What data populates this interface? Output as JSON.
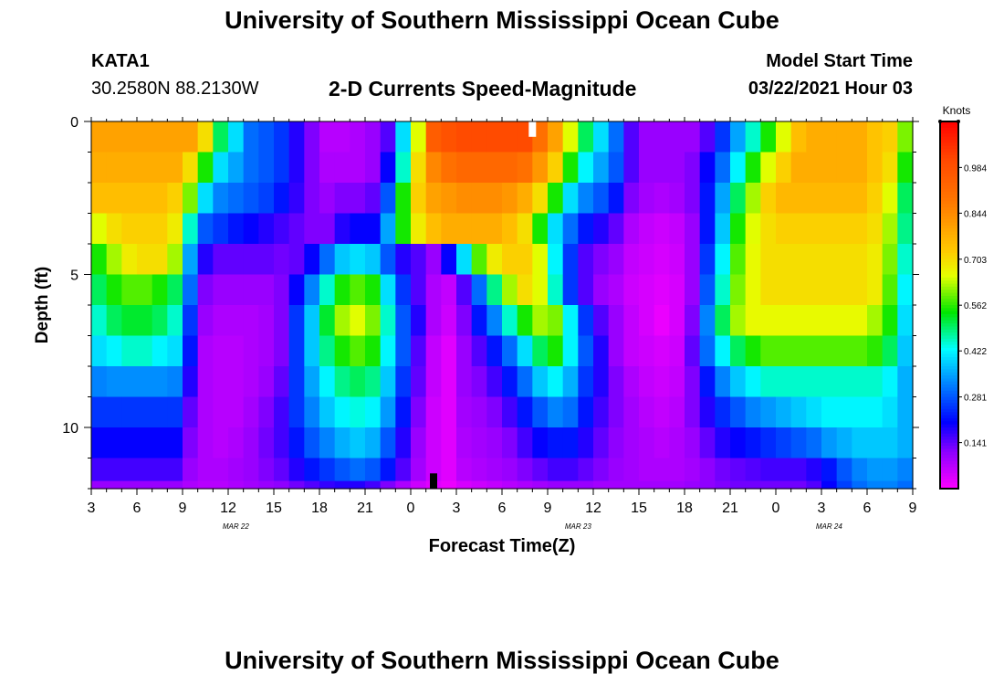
{
  "page": {
    "title": "University of Southern Mississippi Ocean Cube",
    "footer_title": "University of Southern Mississippi Ocean Cube"
  },
  "station": {
    "id": "KATA1",
    "coords": "30.2580N 88.2130W"
  },
  "model": {
    "label": "Model Start Time",
    "start": "03/22/2021 Hour 03"
  },
  "chart_data": {
    "type": "heatmap",
    "title": "2-D Currents Speed-Magnitude",
    "xlabel": "Forecast Time(Z)",
    "ylabel": "Depth (ft)",
    "x_tick_labels": [
      "3",
      "6",
      "9",
      "12",
      "15",
      "18",
      "21",
      "0",
      "3",
      "6",
      "9",
      "12",
      "15",
      "18",
      "21",
      "0",
      "3",
      "6",
      "9"
    ],
    "x_range_hours": [
      0,
      54
    ],
    "date_labels": [
      {
        "text": "MAR 22",
        "hour": 9.5
      },
      {
        "text": "MAR 23",
        "hour": 32
      },
      {
        "text": "MAR 24",
        "hour": 48.5
      }
    ],
    "y_tick_labels": [
      "0",
      "5",
      "10"
    ],
    "y_tick_values": [
      0,
      5,
      10
    ],
    "ylim": [
      0,
      12
    ],
    "colorbar": {
      "unit": "Knots",
      "tick_labels": [
        "0.984",
        "0.844",
        "0.703",
        "0.562",
        "0.422",
        "0.281",
        "0.141"
      ],
      "tick_values": [
        0.984,
        0.844,
        0.703,
        0.562,
        0.422,
        0.281,
        0.141
      ],
      "range": [
        0.0,
        1.125
      ]
    },
    "time_columns": 54,
    "depth_rows": [
      {
        "depth": 0.5,
        "values": [
          0.8,
          0.8,
          0.8,
          0.8,
          0.8,
          0.8,
          0.8,
          0.7,
          0.5,
          0.4,
          0.3,
          0.28,
          0.25,
          0.18,
          0.12,
          0.07,
          0.07,
          0.08,
          0.1,
          0.15,
          0.4,
          0.65,
          0.95,
          0.98,
          1.0,
          1.0,
          1.0,
          1.0,
          1.0,
          0.9,
          0.8,
          0.65,
          0.5,
          0.4,
          0.3,
          0.15,
          0.1,
          0.1,
          0.1,
          0.1,
          0.15,
          0.25,
          0.35,
          0.45,
          0.55,
          0.65,
          0.75,
          0.78,
          0.78,
          0.78,
          0.78,
          0.74,
          0.72,
          0.6
        ]
      },
      {
        "depth": 1.5,
        "values": [
          0.78,
          0.78,
          0.78,
          0.78,
          0.78,
          0.78,
          0.7,
          0.55,
          0.4,
          0.35,
          0.3,
          0.28,
          0.25,
          0.18,
          0.12,
          0.08,
          0.08,
          0.08,
          0.1,
          0.2,
          0.45,
          0.7,
          0.85,
          0.9,
          0.92,
          0.92,
          0.92,
          0.92,
          0.9,
          0.82,
          0.72,
          0.55,
          0.42,
          0.35,
          0.28,
          0.15,
          0.1,
          0.1,
          0.1,
          0.12,
          0.2,
          0.3,
          0.42,
          0.55,
          0.65,
          0.72,
          0.78,
          0.78,
          0.78,
          0.78,
          0.78,
          0.74,
          0.7,
          0.55
        ]
      },
      {
        "depth": 2.5,
        "values": [
          0.75,
          0.75,
          0.75,
          0.75,
          0.75,
          0.72,
          0.6,
          0.4,
          0.32,
          0.3,
          0.28,
          0.26,
          0.22,
          0.17,
          0.12,
          0.1,
          0.12,
          0.12,
          0.14,
          0.28,
          0.55,
          0.72,
          0.8,
          0.82,
          0.84,
          0.84,
          0.84,
          0.82,
          0.78,
          0.7,
          0.55,
          0.4,
          0.32,
          0.28,
          0.22,
          0.12,
          0.09,
          0.08,
          0.09,
          0.12,
          0.22,
          0.35,
          0.5,
          0.62,
          0.72,
          0.76,
          0.76,
          0.76,
          0.76,
          0.76,
          0.76,
          0.72,
          0.65,
          0.5
        ]
      },
      {
        "depth": 3.5,
        "values": [
          0.65,
          0.7,
          0.72,
          0.72,
          0.72,
          0.68,
          0.45,
          0.28,
          0.25,
          0.22,
          0.2,
          0.18,
          0.16,
          0.14,
          0.12,
          0.12,
          0.18,
          0.2,
          0.2,
          0.35,
          0.55,
          0.68,
          0.75,
          0.78,
          0.78,
          0.78,
          0.78,
          0.75,
          0.7,
          0.55,
          0.4,
          0.3,
          0.22,
          0.18,
          0.14,
          0.08,
          0.06,
          0.05,
          0.06,
          0.1,
          0.22,
          0.38,
          0.55,
          0.65,
          0.7,
          0.72,
          0.72,
          0.72,
          0.72,
          0.72,
          0.72,
          0.7,
          0.62,
          0.48
        ]
      },
      {
        "depth": 4.5,
        "values": [
          0.55,
          0.62,
          0.68,
          0.7,
          0.7,
          0.62,
          0.35,
          0.18,
          0.14,
          0.14,
          0.14,
          0.14,
          0.13,
          0.14,
          0.2,
          0.3,
          0.38,
          0.4,
          0.38,
          0.28,
          0.18,
          0.15,
          0.1,
          0.2,
          0.4,
          0.58,
          0.68,
          0.72,
          0.72,
          0.65,
          0.42,
          0.25,
          0.15,
          0.12,
          0.1,
          0.06,
          0.05,
          0.04,
          0.05,
          0.1,
          0.25,
          0.42,
          0.58,
          0.66,
          0.7,
          0.7,
          0.7,
          0.7,
          0.7,
          0.7,
          0.7,
          0.68,
          0.6,
          0.45
        ]
      },
      {
        "depth": 5.5,
        "values": [
          0.5,
          0.55,
          0.58,
          0.58,
          0.55,
          0.5,
          0.3,
          0.12,
          0.1,
          0.1,
          0.1,
          0.1,
          0.12,
          0.2,
          0.32,
          0.45,
          0.55,
          0.58,
          0.55,
          0.4,
          0.25,
          0.15,
          0.08,
          0.06,
          0.15,
          0.3,
          0.48,
          0.62,
          0.7,
          0.65,
          0.45,
          0.25,
          0.15,
          0.1,
          0.08,
          0.05,
          0.04,
          0.03,
          0.04,
          0.1,
          0.28,
          0.45,
          0.6,
          0.66,
          0.7,
          0.7,
          0.7,
          0.7,
          0.7,
          0.7,
          0.7,
          0.68,
          0.58,
          0.42
        ]
      },
      {
        "depth": 6.5,
        "values": [
          0.45,
          0.5,
          0.52,
          0.52,
          0.5,
          0.45,
          0.25,
          0.1,
          0.08,
          0.08,
          0.08,
          0.09,
          0.12,
          0.25,
          0.38,
          0.52,
          0.62,
          0.65,
          0.6,
          0.45,
          0.28,
          0.18,
          0.08,
          0.05,
          0.12,
          0.22,
          0.32,
          0.45,
          0.55,
          0.62,
          0.6,
          0.42,
          0.25,
          0.15,
          0.1,
          0.06,
          0.04,
          0.02,
          0.04,
          0.12,
          0.32,
          0.5,
          0.62,
          0.66,
          0.66,
          0.66,
          0.66,
          0.66,
          0.66,
          0.66,
          0.66,
          0.62,
          0.55,
          0.4
        ]
      },
      {
        "depth": 7.5,
        "values": [
          0.4,
          0.42,
          0.45,
          0.45,
          0.42,
          0.4,
          0.22,
          0.08,
          0.07,
          0.07,
          0.08,
          0.09,
          0.12,
          0.25,
          0.38,
          0.48,
          0.55,
          0.58,
          0.55,
          0.42,
          0.28,
          0.15,
          0.06,
          0.03,
          0.1,
          0.15,
          0.22,
          0.3,
          0.4,
          0.5,
          0.55,
          0.42,
          0.28,
          0.18,
          0.1,
          0.06,
          0.05,
          0.04,
          0.05,
          0.14,
          0.3,
          0.42,
          0.5,
          0.55,
          0.58,
          0.58,
          0.58,
          0.58,
          0.58,
          0.58,
          0.58,
          0.56,
          0.5,
          0.38
        ]
      },
      {
        "depth": 8.5,
        "values": [
          0.32,
          0.33,
          0.33,
          0.33,
          0.33,
          0.32,
          0.18,
          0.08,
          0.07,
          0.07,
          0.08,
          0.1,
          0.14,
          0.25,
          0.35,
          0.42,
          0.48,
          0.5,
          0.48,
          0.38,
          0.25,
          0.14,
          0.06,
          0.03,
          0.1,
          0.12,
          0.16,
          0.22,
          0.3,
          0.38,
          0.42,
          0.36,
          0.25,
          0.18,
          0.12,
          0.08,
          0.06,
          0.05,
          0.06,
          0.12,
          0.22,
          0.32,
          0.38,
          0.42,
          0.45,
          0.45,
          0.45,
          0.45,
          0.45,
          0.45,
          0.45,
          0.45,
          0.42,
          0.36
        ]
      },
      {
        "depth": 9.5,
        "values": [
          0.25,
          0.25,
          0.25,
          0.25,
          0.25,
          0.25,
          0.14,
          0.08,
          0.07,
          0.07,
          0.09,
          0.12,
          0.16,
          0.25,
          0.32,
          0.38,
          0.42,
          0.44,
          0.42,
          0.34,
          0.22,
          0.12,
          0.05,
          0.03,
          0.09,
          0.1,
          0.12,
          0.16,
          0.22,
          0.28,
          0.32,
          0.3,
          0.22,
          0.16,
          0.12,
          0.09,
          0.07,
          0.06,
          0.07,
          0.12,
          0.18,
          0.24,
          0.28,
          0.32,
          0.34,
          0.36,
          0.38,
          0.4,
          0.42,
          0.42,
          0.42,
          0.42,
          0.4,
          0.36
        ]
      },
      {
        "depth": 10.5,
        "values": [
          0.2,
          0.2,
          0.2,
          0.2,
          0.2,
          0.2,
          0.12,
          0.08,
          0.07,
          0.08,
          0.1,
          0.13,
          0.16,
          0.22,
          0.28,
          0.32,
          0.36,
          0.38,
          0.36,
          0.28,
          0.18,
          0.1,
          0.05,
          0.03,
          0.08,
          0.09,
          0.1,
          0.12,
          0.16,
          0.2,
          0.22,
          0.22,
          0.18,
          0.14,
          0.11,
          0.09,
          0.08,
          0.07,
          0.08,
          0.1,
          0.14,
          0.18,
          0.2,
          0.22,
          0.24,
          0.26,
          0.28,
          0.3,
          0.34,
          0.36,
          0.38,
          0.38,
          0.38,
          0.36
        ]
      },
      {
        "depth": 11.5,
        "values": [
          0.16,
          0.16,
          0.16,
          0.16,
          0.16,
          0.16,
          0.1,
          0.08,
          0.08,
          0.09,
          0.1,
          0.12,
          0.14,
          0.18,
          0.22,
          0.25,
          0.28,
          0.3,
          0.28,
          0.22,
          0.15,
          0.09,
          0.05,
          0.03,
          0.07,
          0.08,
          0.09,
          0.1,
          0.12,
          0.14,
          0.16,
          0.16,
          0.14,
          0.12,
          0.1,
          0.09,
          0.08,
          0.08,
          0.08,
          0.09,
          0.11,
          0.13,
          0.14,
          0.15,
          0.16,
          0.16,
          0.16,
          0.18,
          0.22,
          0.28,
          0.32,
          0.34,
          0.34,
          0.32
        ]
      },
      {
        "depth": 12.0,
        "values": [
          0.1,
          0.1,
          0.1,
          0.1,
          0.1,
          0.1,
          0.08,
          0.07,
          0.07,
          0.08,
          0.09,
          0.1,
          0.11,
          0.13,
          0.15,
          0.17,
          0.18,
          0.18,
          0.16,
          0.12,
          0.08,
          0.05,
          0.03,
          0.02,
          0.04,
          0.05,
          0.06,
          0.07,
          0.08,
          0.09,
          0.1,
          0.1,
          0.1,
          0.09,
          0.09,
          0.09,
          0.09,
          0.09,
          0.09,
          0.1,
          0.11,
          0.12,
          0.13,
          0.13,
          0.13,
          0.13,
          0.13,
          0.15,
          0.2,
          0.26,
          0.3,
          0.32,
          0.32,
          0.3
        ]
      }
    ],
    "markers": [
      {
        "name": "surface-marker",
        "hour": 29,
        "depth_from": 0.0,
        "depth_to": 0.5,
        "color": "#ffffff"
      },
      {
        "name": "bottom-marker",
        "hour": 22.5,
        "depth_from": 11.5,
        "depth_to": 12.0,
        "color": "#000000"
      }
    ]
  }
}
